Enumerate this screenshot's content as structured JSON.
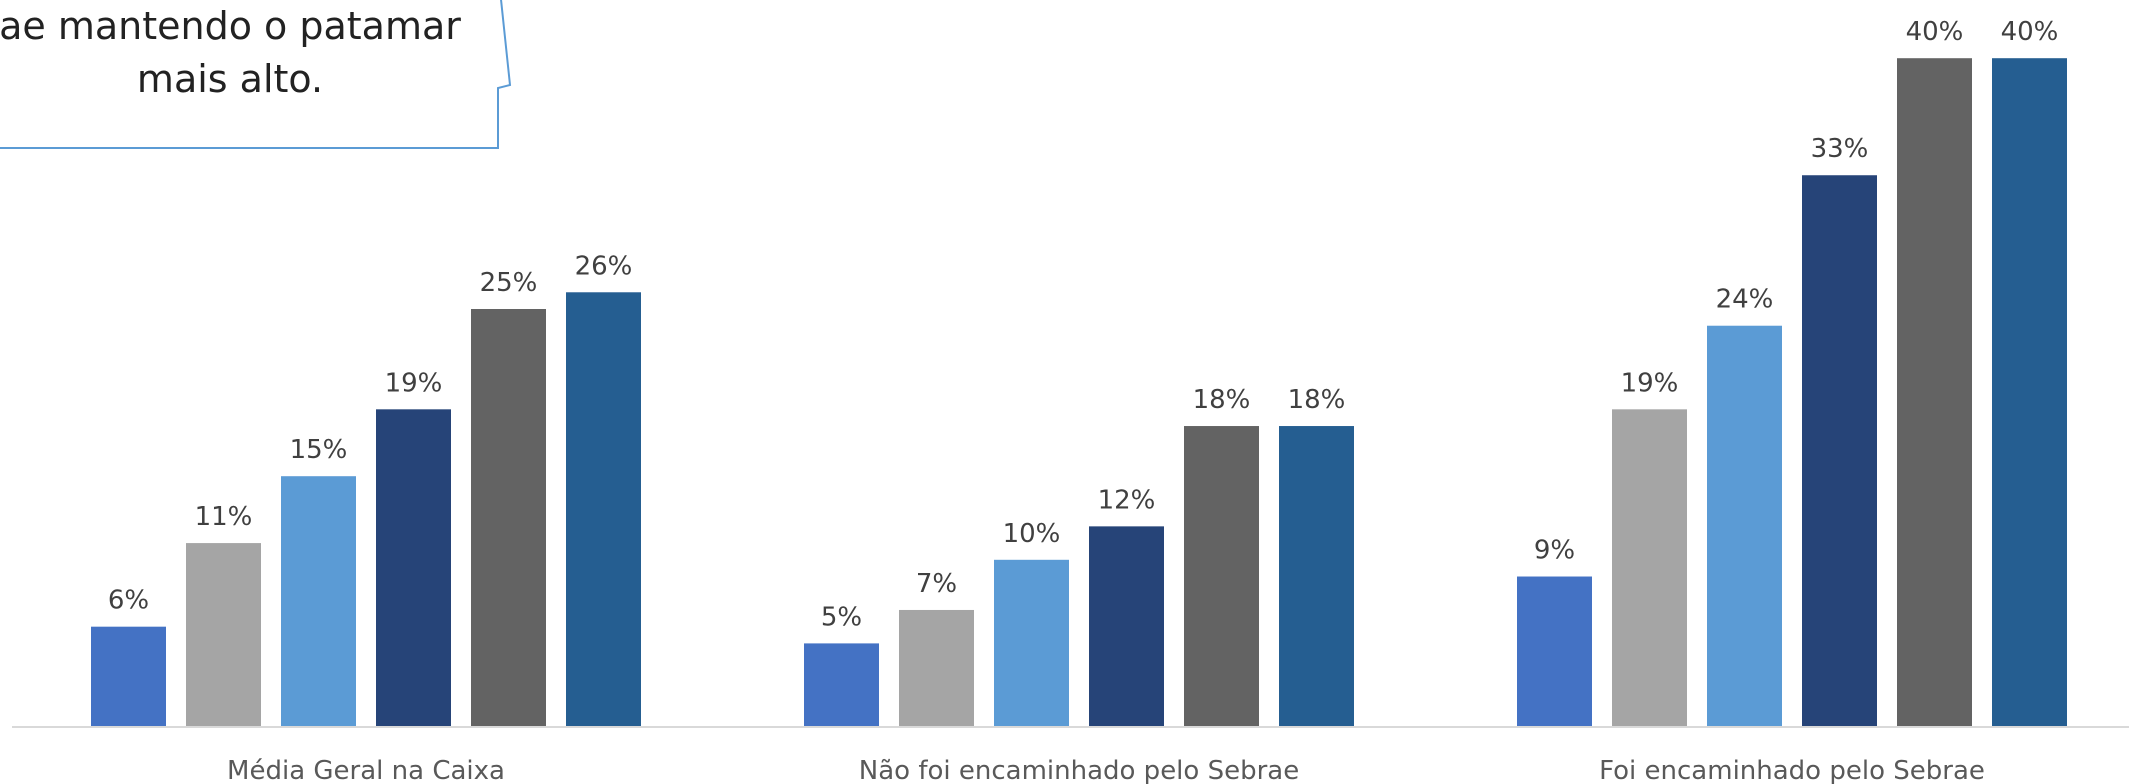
{
  "callout": {
    "line1": "ae mantendo o patamar",
    "line2": "mais alto."
  },
  "colors": {
    "series": [
      "#4472C4",
      "#A5A5A5",
      "#5B9BD5",
      "#264478",
      "#636363",
      "#255E91"
    ],
    "callout_border": "#5B9BD5",
    "axis": "#D9D9D9",
    "label_text": "#404040",
    "category_text": "#595959"
  },
  "chart_data": {
    "type": "bar",
    "title": "",
    "xlabel": "",
    "ylabel": "",
    "ylim": [
      0,
      40
    ],
    "grid": false,
    "categories": [
      "Média Geral na Caixa",
      "Não foi encaminhado pelo Sebrae",
      "Foi encaminhado pelo Sebrae"
    ],
    "series": [
      {
        "values": [
          6,
          5,
          9
        ],
        "labels": [
          "6%",
          "5%",
          "9%"
        ]
      },
      {
        "values": [
          11,
          7,
          19
        ],
        "labels": [
          "11%",
          "7%",
          "19%"
        ]
      },
      {
        "values": [
          15,
          10,
          24
        ],
        "labels": [
          "15%",
          "10%",
          "24%"
        ]
      },
      {
        "values": [
          19,
          12,
          33
        ],
        "labels": [
          "19%",
          "12%",
          "33%"
        ]
      },
      {
        "values": [
          25,
          18,
          40
        ],
        "labels": [
          "25%",
          "18%",
          "40%"
        ]
      },
      {
        "values": [
          26,
          18,
          40
        ],
        "labels": [
          "26%",
          "18%",
          "40%"
        ]
      }
    ]
  }
}
